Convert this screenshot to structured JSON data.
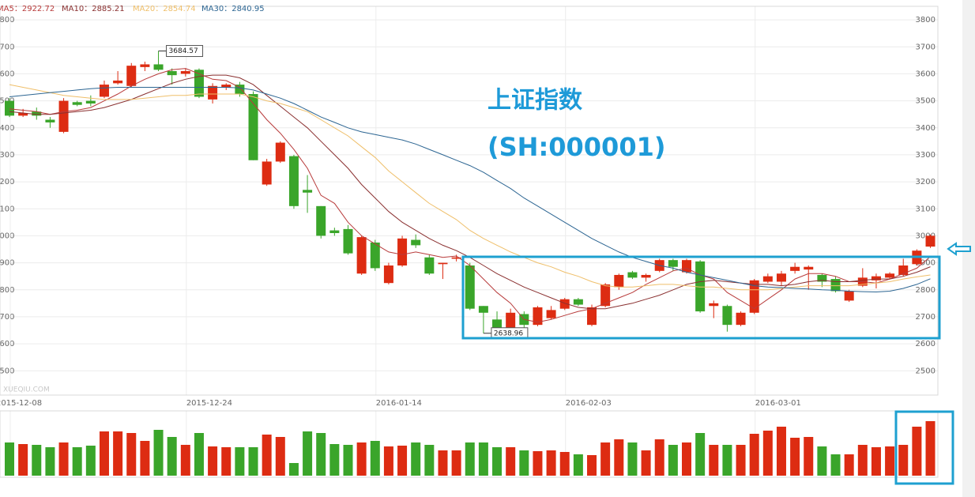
{
  "chart_data": {
    "type": "candlestick",
    "title": "上证指数",
    "subtitle": "(SH:000001)",
    "watermark": "XUEQIU.COM",
    "categories": [
      "2015-12-08",
      null,
      null,
      null,
      null,
      null,
      null,
      null,
      null,
      null,
      null,
      null,
      null,
      "2015-12-24",
      null,
      null,
      null,
      null,
      null,
      null,
      null,
      null,
      null,
      null,
      null,
      null,
      null,
      "2016-01-14",
      null,
      null,
      null,
      null,
      null,
      null,
      null,
      null,
      null,
      null,
      null,
      null,
      null,
      "2016-02-03",
      null,
      null,
      null,
      null,
      null,
      null,
      null,
      null,
      null,
      null,
      null,
      null,
      null,
      "2016-03-01",
      null,
      null,
      null,
      null,
      null,
      null,
      null,
      null,
      null,
      null,
      null,
      null,
      null
    ],
    "open": [
      3500,
      3445,
      3460,
      3430,
      3385,
      3495,
      3500,
      3515,
      3565,
      3555,
      3625,
      3635,
      3610,
      3600,
      3615,
      3505,
      3550,
      3560,
      3525,
      3190,
      3275,
      3295,
      3170,
      3110,
      3020,
      3025,
      2860,
      2975,
      2825,
      2890,
      2985,
      2920,
      2895,
      2915,
      2890,
      2740,
      2690,
      2655,
      2710,
      2670,
      2695,
      2730,
      2765,
      2670,
      2740,
      2810,
      2865,
      2845,
      2870,
      2910,
      2865,
      2905,
      2740,
      2740,
      2670,
      2715,
      2830,
      2830,
      2870,
      2875,
      2855,
      2840,
      2760,
      2815,
      2835,
      2845,
      2855,
      2895,
      2960
    ],
    "high": [
      3510,
      3470,
      3475,
      3440,
      3510,
      3500,
      3520,
      3575,
      3610,
      3640,
      3645,
      3684.57,
      3620,
      3620,
      3620,
      3565,
      3565,
      3570,
      3535,
      3285,
      3350,
      3300,
      3225,
      3110,
      3030,
      3040,
      3000,
      2985,
      2900,
      3000,
      3005,
      2930,
      2900,
      2930,
      2900,
      2740,
      2720,
      2730,
      2720,
      2740,
      2740,
      2770,
      2770,
      2745,
      2825,
      2860,
      2870,
      2860,
      2915,
      2915,
      2915,
      2910,
      2760,
      2745,
      2720,
      2840,
      2860,
      2870,
      2900,
      2890,
      2860,
      2850,
      2800,
      2880,
      2860,
      2865,
      2915,
      2950,
      3005
    ],
    "low": [
      3440,
      3440,
      3430,
      3400,
      3380,
      3480,
      3480,
      3510,
      3560,
      3550,
      3610,
      3610,
      3560,
      3590,
      3510,
      3490,
      3540,
      3515,
      3280,
      3185,
      3270,
      3100,
      3085,
      2990,
      3000,
      2930,
      2855,
      2870,
      2820,
      2885,
      2955,
      2855,
      2840,
      2905,
      2725,
      2638.96,
      2640,
      2650,
      2660,
      2665,
      2690,
      2725,
      2740,
      2665,
      2735,
      2800,
      2840,
      2830,
      2865,
      2870,
      2860,
      2715,
      2695,
      2645,
      2665,
      2710,
      2825,
      2815,
      2860,
      2800,
      2810,
      2790,
      2755,
      2810,
      2805,
      2840,
      2850,
      2890,
      2955
    ],
    "close": [
      3445,
      3455,
      3445,
      3420,
      3500,
      3485,
      3490,
      3560,
      3575,
      3630,
      3635,
      3615,
      3595,
      3610,
      3515,
      3555,
      3560,
      3525,
      3280,
      3275,
      3345,
      3110,
      3160,
      3000,
      3010,
      2935,
      2995,
      2880,
      2890,
      2990,
      2965,
      2860,
      2900,
      2920,
      2730,
      2715,
      2640,
      2715,
      2670,
      2735,
      2725,
      2765,
      2745,
      2735,
      2820,
      2855,
      2845,
      2855,
      2910,
      2885,
      2910,
      2720,
      2750,
      2670,
      2715,
      2835,
      2850,
      2860,
      2885,
      2885,
      2830,
      2795,
      2795,
      2845,
      2850,
      2860,
      2890,
      2945,
      3000
    ],
    "up_color": "#dd2c12",
    "down_color": "#3aa52a",
    "ylim": [
      2410,
      3850
    ],
    "yticks": [
      2500,
      2600,
      2700,
      2800,
      2900,
      3000,
      3100,
      3200,
      3300,
      3400,
      3500,
      3600,
      3700,
      3800
    ],
    "grid": true,
    "series": [
      {
        "name": "MA5：",
        "color": "#b83b3b",
        "values": [
          3470,
          3465,
          3460,
          3450,
          3460,
          3465,
          3475,
          3500,
          3525,
          3555,
          3580,
          3600,
          3615,
          3620,
          3600,
          3580,
          3575,
          3550,
          3490,
          3430,
          3380,
          3320,
          3250,
          3150,
          3120,
          3050,
          3000,
          2970,
          2940,
          2930,
          2940,
          2930,
          2920,
          2925,
          2890,
          2840,
          2790,
          2750,
          2690,
          2680,
          2690,
          2705,
          2720,
          2730,
          2750,
          2770,
          2790,
          2820,
          2845,
          2870,
          2880,
          2855,
          2840,
          2790,
          2760,
          2730,
          2765,
          2800,
          2840,
          2860,
          2860,
          2850,
          2830,
          2830,
          2825,
          2840,
          2860,
          2880,
          2922.72
        ]
      },
      {
        "name": "MA10：",
        "color": "#8a3030",
        "values": [
          3460,
          3455,
          3450,
          3450,
          3455,
          3460,
          3465,
          3475,
          3490,
          3505,
          3525,
          3545,
          3565,
          3580,
          3590,
          3595,
          3595,
          3585,
          3560,
          3520,
          3480,
          3440,
          3400,
          3350,
          3300,
          3250,
          3190,
          3140,
          3090,
          3050,
          3020,
          2990,
          2965,
          2945,
          2920,
          2890,
          2860,
          2835,
          2810,
          2790,
          2770,
          2750,
          2735,
          2730,
          2730,
          2740,
          2750,
          2765,
          2780,
          2800,
          2820,
          2830,
          2835,
          2830,
          2825,
          2820,
          2820,
          2815,
          2820,
          2830,
          2835,
          2830,
          2830,
          2835,
          2840,
          2840,
          2850,
          2865,
          2885.21
        ]
      },
      {
        "name": "MA20：",
        "color": "#efbf6a",
        "values": [
          3560,
          3550,
          3540,
          3530,
          3520,
          3515,
          3510,
          3505,
          3505,
          3505,
          3510,
          3515,
          3520,
          3520,
          3525,
          3525,
          3525,
          3525,
          3515,
          3500,
          3490,
          3475,
          3460,
          3430,
          3400,
          3370,
          3330,
          3290,
          3240,
          3200,
          3160,
          3120,
          3090,
          3060,
          3020,
          2990,
          2965,
          2940,
          2920,
          2900,
          2885,
          2865,
          2850,
          2830,
          2815,
          2810,
          2810,
          2815,
          2820,
          2820,
          2815,
          2810,
          2810,
          2805,
          2800,
          2800,
          2800,
          2805,
          2810,
          2815,
          2815,
          2815,
          2815,
          2820,
          2825,
          2830,
          2840,
          2848,
          2854.74
        ]
      },
      {
        "name": "MA30：",
        "color": "#2c6592",
        "values": [
          3515,
          3520,
          3525,
          3530,
          3535,
          3540,
          3545,
          3548,
          3550,
          3550,
          3550,
          3550,
          3550,
          3550,
          3550,
          3550,
          3550,
          3548,
          3540,
          3525,
          3510,
          3490,
          3465,
          3440,
          3420,
          3400,
          3385,
          3375,
          3365,
          3355,
          3340,
          3320,
          3300,
          3280,
          3260,
          3235,
          3205,
          3175,
          3140,
          3110,
          3080,
          3050,
          3020,
          2990,
          2965,
          2940,
          2920,
          2905,
          2890,
          2880,
          2865,
          2855,
          2845,
          2835,
          2825,
          2815,
          2810,
          2808,
          2805,
          2803,
          2800,
          2798,
          2795,
          2793,
          2792,
          2795,
          2805,
          2820,
          2840.95
        ]
      }
    ],
    "volume": {
      "values": [
        42,
        40,
        39,
        36,
        42,
        36,
        38,
        56,
        56,
        54,
        44,
        58,
        49,
        39,
        54,
        37,
        36,
        36,
        36,
        52,
        49,
        16,
        56,
        54,
        40,
        39,
        42,
        44,
        37,
        38,
        42,
        39,
        32,
        32,
        42,
        42,
        36,
        36,
        32,
        31,
        32,
        30,
        27,
        26,
        42,
        46,
        42,
        32,
        46,
        39,
        42,
        54,
        39,
        39,
        39,
        53,
        57,
        62,
        48,
        49,
        37,
        27,
        27,
        39,
        36,
        37,
        39,
        62,
        69
      ],
      "ylim": [
        0,
        82
      ]
    }
  }
}
